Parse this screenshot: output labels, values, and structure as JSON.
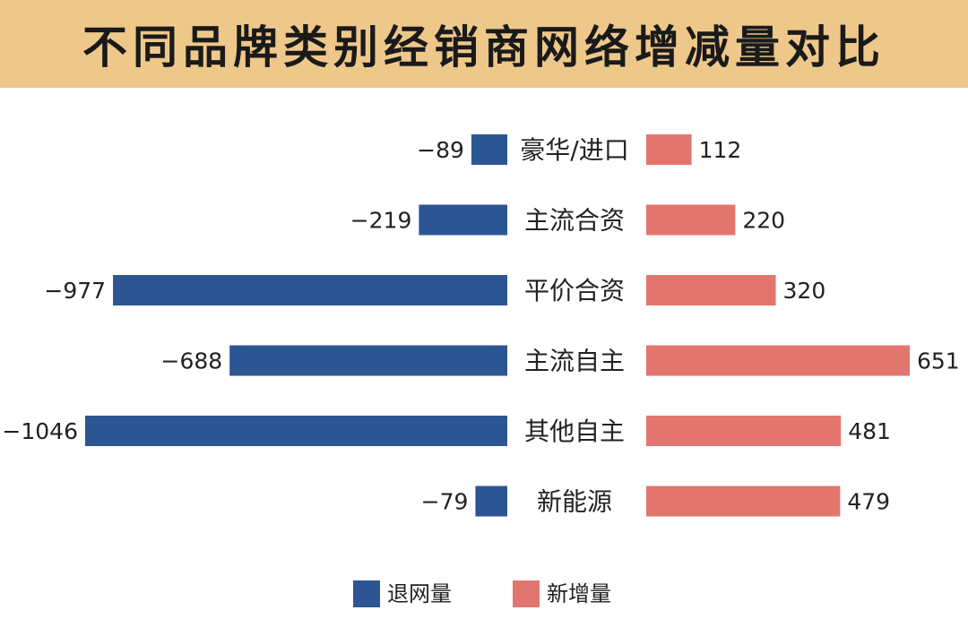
{
  "title": "不同品牌类别经销商网络增减量对比",
  "colors": {
    "banner": "#EEC88A",
    "exit_bar": "#2C5593",
    "new_bar": "#E3756F"
  },
  "chart_data": {
    "type": "bar",
    "orientation": "horizontal-diverging",
    "categories": [
      "豪华/进口",
      "主流合资",
      "平价合资",
      "主流自主",
      "其他自主",
      "新能源"
    ],
    "series": [
      {
        "name": "退网量",
        "values": [
          -89,
          -219,
          -977,
          -688,
          -1046,
          -79
        ]
      },
      {
        "name": "新增量",
        "values": [
          112,
          220,
          320,
          651,
          481,
          479
        ]
      }
    ],
    "legend_position": "bottom-center",
    "grid": false
  }
}
